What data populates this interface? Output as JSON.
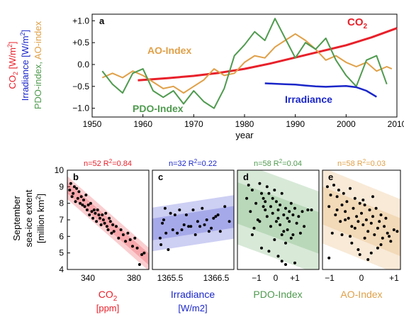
{
  "colors": {
    "co2": "#e8202a",
    "irradiance": "#1a26c8",
    "pdo": "#4f9a4f",
    "ao": "#e0a048",
    "axis": "#000000"
  },
  "top": {
    "panel_label": "a",
    "ylabel_co2": "CO",
    "ylabel_co2_sub": "2",
    "ylabel_co2_unit": " [W/m",
    "ylabel_co2_sup": "2",
    "ylabel_co2_close": "]",
    "ylabel_irr": "Irradiance [W/m",
    "ylabel_irr_sup": "2",
    "ylabel_irr_close": "]",
    "ylabel_pdo": "PDO-index,",
    "ylabel_ao": " AO-index",
    "xlabel": "year",
    "label_co2": "CO",
    "label_co2_sub": "2",
    "label_ao": "AO-Index",
    "label_pdo": "PDO-Index",
    "label_irr": "Irradiance"
  },
  "bottom": {
    "ylabel_lines": [
      "September",
      "sea-ice extent"
    ],
    "ylabel_unit": "[million km",
    "ylabel_unit_sup": "2",
    "ylabel_unit_close": "]",
    "panels": [
      {
        "id": "b",
        "stats_n": "n=52 R",
        "stats_sup": "2",
        "stats_r": "=0.84",
        "xlabel_main": "CO",
        "xlabel_sub": "2",
        "xlabel_unit": "[ppm]",
        "xticks": [
          "340",
          "380"
        ]
      },
      {
        "id": "c",
        "stats_n": "n=32 R",
        "stats_sup": "2",
        "stats_r": "=0.22",
        "xlabel_main": "Irradiance",
        "xlabel_sub": "",
        "xlabel_unit": "[W/m2]",
        "xticks": [
          "1365.5",
          "1366.5"
        ]
      },
      {
        "id": "d",
        "stats_n": "n=58 R",
        "stats_sup": "2",
        "stats_r": "=0.04",
        "xlabel_main": "PDO-Index",
        "xlabel_sub": "",
        "xlabel_unit": "",
        "xticks": [
          "−1",
          "0",
          "+1"
        ]
      },
      {
        "id": "e",
        "stats_n": "n=58 R",
        "stats_sup": "2",
        "stats_r": "=0.03",
        "xlabel_main": "AO-Index",
        "xlabel_sub": "",
        "xlabel_unit": "",
        "xticks": [
          "−1",
          "0",
          "+1"
        ]
      }
    ]
  },
  "chart_data": [
    {
      "type": "line",
      "panel": "a",
      "xlabel": "year",
      "xlim": [
        1950,
        2010
      ],
      "ylim": [
        -1.2,
        1.15
      ],
      "xticks": [
        1950,
        1960,
        1970,
        1980,
        1990,
        2000,
        2010
      ],
      "yticks": [
        -1.0,
        -0.5,
        0.0,
        0.5,
        1.0
      ],
      "ytick_labels": [
        "−1.0",
        "−0.5",
        "0.0",
        "+0.5",
        "+1.0"
      ],
      "series": [
        {
          "name": "CO2",
          "x": [
            1959,
            1965,
            1970,
            1975,
            1980,
            1985,
            1990,
            1995,
            2000,
            2005,
            2010
          ],
          "y": [
            -0.36,
            -0.31,
            -0.26,
            -0.19,
            -0.1,
            0.02,
            0.16,
            0.3,
            0.44,
            0.62,
            0.83
          ]
        },
        {
          "name": "AO-Index",
          "x": [
            1952,
            1954,
            1956,
            1958,
            1960,
            1962,
            1964,
            1966,
            1968,
            1970,
            1972,
            1974,
            1976,
            1978,
            1980,
            1982,
            1984,
            1986,
            1988,
            1990,
            1992,
            1994,
            1996,
            1998,
            2000,
            2002,
            2004,
            2006,
            2008,
            2009
          ],
          "y": [
            -0.3,
            -0.2,
            -0.3,
            -0.15,
            -0.25,
            -0.4,
            -0.55,
            -0.5,
            -0.65,
            -0.5,
            -0.35,
            -0.1,
            -0.25,
            -0.2,
            0.05,
            0.2,
            0.15,
            0.4,
            0.55,
            0.7,
            0.55,
            0.35,
            0.1,
            0.2,
            0.05,
            -0.05,
            0.05,
            -0.15,
            -0.05,
            -0.1
          ]
        },
        {
          "name": "PDO-Index",
          "x": [
            1952,
            1954,
            1956,
            1958,
            1960,
            1962,
            1964,
            1966,
            1968,
            1970,
            1972,
            1974,
            1976,
            1978,
            1980,
            1982,
            1984,
            1986,
            1988,
            1990,
            1992,
            1994,
            1996,
            1998,
            2000,
            2002,
            2004,
            2006,
            2008
          ],
          "y": [
            -0.15,
            -0.45,
            -0.65,
            -0.2,
            -0.1,
            -0.6,
            -0.75,
            -0.6,
            -0.9,
            -0.6,
            -0.85,
            -1.0,
            -0.55,
            0.2,
            0.45,
            0.75,
            0.55,
            1.05,
            0.6,
            0.15,
            0.5,
            0.35,
            0.6,
            0.1,
            -0.25,
            -0.5,
            0.1,
            0.2,
            -0.45
          ]
        },
        {
          "name": "Irradiance",
          "x": [
            1984,
            1986,
            1988,
            1990,
            1992,
            1994,
            1996,
            1998,
            2000,
            2002,
            2004,
            2006
          ],
          "y": [
            -0.43,
            -0.44,
            -0.45,
            -0.46,
            -0.48,
            -0.5,
            -0.51,
            -0.5,
            -0.49,
            -0.52,
            -0.6,
            -0.74
          ]
        }
      ]
    },
    {
      "type": "scatter",
      "panel": "b",
      "xlim": [
        318,
        388
      ],
      "ylim": [
        4,
        10
      ],
      "yticks": [
        4,
        5,
        6,
        7,
        8,
        9,
        10
      ],
      "stats": "n=52 R2=0.84",
      "points": [
        [
          320,
          8.8
        ],
        [
          321,
          9.2
        ],
        [
          322,
          8.4
        ],
        [
          323,
          8.6
        ],
        [
          324,
          9.0
        ],
        [
          325,
          8.1
        ],
        [
          326,
          8.9
        ],
        [
          327,
          8.3
        ],
        [
          328,
          8.7
        ],
        [
          329,
          8.0
        ],
        [
          330,
          8.4
        ],
        [
          331,
          7.9
        ],
        [
          332,
          8.2
        ],
        [
          333,
          7.8
        ],
        [
          334,
          8.5
        ],
        [
          335,
          7.6
        ],
        [
          336,
          7.9
        ],
        [
          337,
          7.3
        ],
        [
          338,
          8.0
        ],
        [
          339,
          7.5
        ],
        [
          340,
          7.1
        ],
        [
          341,
          7.6
        ],
        [
          342,
          7.4
        ],
        [
          343,
          6.9
        ],
        [
          344,
          7.6
        ],
        [
          345,
          7.3
        ],
        [
          346,
          7.1
        ],
        [
          347,
          6.7
        ],
        [
          348,
          7.3
        ],
        [
          349,
          7.0
        ],
        [
          350,
          6.8
        ],
        [
          351,
          7.4
        ],
        [
          352,
          6.6
        ],
        [
          353,
          6.4
        ],
        [
          354,
          7.1
        ],
        [
          355,
          6.9
        ],
        [
          356,
          6.2
        ],
        [
          357,
          6.7
        ],
        [
          358,
          6.3
        ],
        [
          360,
          6.6
        ],
        [
          362,
          5.9
        ],
        [
          364,
          6.4
        ],
        [
          366,
          6.1
        ],
        [
          368,
          5.7
        ],
        [
          370,
          6.2
        ],
        [
          372,
          5.8
        ],
        [
          374,
          5.4
        ],
        [
          376,
          5.9
        ],
        [
          378,
          5.3
        ],
        [
          380,
          4.3
        ],
        [
          382,
          4.9
        ],
        [
          384,
          5.0
        ]
      ]
    },
    {
      "type": "scatter",
      "panel": "c",
      "xlim": [
        1365.1,
        1366.9
      ],
      "ylim": [
        4,
        10
      ],
      "stats": "n=32 R2=0.22",
      "points": [
        [
          1365.27,
          5.9
        ],
        [
          1365.29,
          5.5
        ],
        [
          1365.32,
          6.8
        ],
        [
          1365.35,
          7.0
        ],
        [
          1365.38,
          7.7
        ],
        [
          1365.4,
          6.2
        ],
        [
          1365.45,
          5.2
        ],
        [
          1365.5,
          7.4
        ],
        [
          1365.55,
          6.4
        ],
        [
          1365.6,
          7.3
        ],
        [
          1365.65,
          6.2
        ],
        [
          1365.7,
          7.6
        ],
        [
          1365.75,
          6.4
        ],
        [
          1365.8,
          6.7
        ],
        [
          1365.85,
          7.3
        ],
        [
          1365.9,
          6.6
        ],
        [
          1365.95,
          6.6
        ],
        [
          1366.0,
          7.6
        ],
        [
          1366.05,
          6.1
        ],
        [
          1366.1,
          6.9
        ],
        [
          1366.15,
          6.6
        ],
        [
          1366.2,
          7.7
        ],
        [
          1366.25,
          6.7
        ],
        [
          1366.3,
          7.0
        ],
        [
          1366.35,
          6.3
        ],
        [
          1366.4,
          6.5
        ],
        [
          1366.45,
          7.1
        ],
        [
          1366.5,
          7.2
        ],
        [
          1366.55,
          7.3
        ],
        [
          1366.6,
          6.3
        ],
        [
          1366.7,
          7.8
        ],
        [
          1366.8,
          6.9
        ]
      ]
    },
    {
      "type": "scatter",
      "panel": "d",
      "xlim": [
        -2.1,
        2.3
      ],
      "ylim": [
        4,
        10
      ],
      "stats": "n=58 R2=0.04",
      "points": [
        [
          -1.5,
          9.1
        ],
        [
          -1.3,
          8.8
        ],
        [
          -1.6,
          8.3
        ],
        [
          -1.1,
          8.0
        ],
        [
          -1.4,
          7.5
        ],
        [
          -0.9,
          9.2
        ],
        [
          -1.0,
          7.0
        ],
        [
          -1.2,
          6.5
        ],
        [
          -0.8,
          8.6
        ],
        [
          -0.7,
          8.3
        ],
        [
          -0.6,
          7.6
        ],
        [
          -0.9,
          6.9
        ],
        [
          -0.5,
          9.0
        ],
        [
          -0.4,
          8.6
        ],
        [
          -0.6,
          8.1
        ],
        [
          -0.3,
          7.8
        ],
        [
          -0.5,
          7.2
        ],
        [
          -0.2,
          8.3
        ],
        [
          -0.3,
          6.6
        ],
        [
          -0.1,
          8.8
        ],
        [
          0.0,
          8.1
        ],
        [
          -0.2,
          7.4
        ],
        [
          0.1,
          7.6
        ],
        [
          0.0,
          6.9
        ],
        [
          0.2,
          7.9
        ],
        [
          0.1,
          7.1
        ],
        [
          0.3,
          8.6
        ],
        [
          0.2,
          6.7
        ],
        [
          0.4,
          7.3
        ],
        [
          0.3,
          6.1
        ],
        [
          0.5,
          7.7
        ],
        [
          0.4,
          6.3
        ],
        [
          0.6,
          7.1
        ],
        [
          0.5,
          5.6
        ],
        [
          0.7,
          7.5
        ],
        [
          0.6,
          6.4
        ],
        [
          0.8,
          8.0
        ],
        [
          0.7,
          6.9
        ],
        [
          0.9,
          7.3
        ],
        [
          0.8,
          5.9
        ],
        [
          1.0,
          7.7
        ],
        [
          1.1,
          6.8
        ],
        [
          1.2,
          7.2
        ],
        [
          1.3,
          6.2
        ],
        [
          1.4,
          7.5
        ],
        [
          1.5,
          6.6
        ],
        [
          1.7,
          7.6
        ],
        [
          -1.3,
          6.1
        ],
        [
          -0.8,
          5.3
        ],
        [
          -0.4,
          5.1
        ],
        [
          0.1,
          4.8
        ],
        [
          -0.1,
          5.8
        ],
        [
          0.3,
          4.5
        ],
        [
          1.0,
          4.4
        ],
        [
          0.5,
          4.3
        ],
        [
          -0.7,
          7.8
        ],
        [
          0.9,
          6.1
        ],
        [
          1.9,
          7.6
        ]
      ]
    },
    {
      "type": "scatter",
      "panel": "e",
      "xlim": [
        -1.2,
        1.2
      ],
      "ylim": [
        4,
        10
      ],
      "stats": "n=58 R2=0.03",
      "points": [
        [
          -1.05,
          9.0
        ],
        [
          -0.95,
          8.5
        ],
        [
          -1.0,
          7.8
        ],
        [
          -0.85,
          9.1
        ],
        [
          -0.8,
          7.3
        ],
        [
          -0.75,
          8.4
        ],
        [
          -0.7,
          8.8
        ],
        [
          -0.65,
          6.9
        ],
        [
          -0.6,
          7.9
        ],
        [
          -0.55,
          8.6
        ],
        [
          -0.5,
          7.5
        ],
        [
          -0.45,
          8.1
        ],
        [
          -0.4,
          7.1
        ],
        [
          -0.35,
          8.9
        ],
        [
          -0.3,
          6.6
        ],
        [
          -0.25,
          7.7
        ],
        [
          -0.2,
          8.3
        ],
        [
          -0.15,
          7.2
        ],
        [
          -0.1,
          6.9
        ],
        [
          -0.05,
          8.0
        ],
        [
          0.0,
          7.4
        ],
        [
          0.05,
          6.7
        ],
        [
          0.1,
          7.9
        ],
        [
          0.15,
          7.0
        ],
        [
          0.2,
          6.3
        ],
        [
          0.25,
          7.6
        ],
        [
          0.3,
          6.8
        ],
        [
          0.35,
          7.2
        ],
        [
          0.4,
          6.1
        ],
        [
          0.45,
          7.7
        ],
        [
          0.5,
          6.5
        ],
        [
          0.55,
          6.9
        ],
        [
          0.6,
          7.3
        ],
        [
          0.65,
          5.9
        ],
        [
          0.7,
          6.6
        ],
        [
          0.75,
          7.1
        ],
        [
          0.8,
          6.2
        ],
        [
          0.9,
          5.7
        ],
        [
          1.0,
          6.4
        ],
        [
          1.1,
          6.3
        ],
        [
          -0.9,
          6.2
        ],
        [
          -0.6,
          6.1
        ],
        [
          -0.3,
          5.6
        ],
        [
          -0.1,
          5.2
        ],
        [
          0.1,
          5.9
        ],
        [
          0.3,
          5.0
        ],
        [
          0.2,
          4.6
        ],
        [
          0.5,
          5.3
        ],
        [
          -0.05,
          4.9
        ],
        [
          -0.5,
          7.0
        ],
        [
          -0.2,
          6.5
        ],
        [
          0.05,
          8.2
        ],
        [
          0.35,
          8.4
        ],
        [
          -0.35,
          6.0
        ],
        [
          0.6,
          5.5
        ],
        [
          -0.75,
          7.6
        ],
        [
          0.85,
          6.0
        ],
        [
          -1.0,
          4.7
        ]
      ]
    }
  ]
}
